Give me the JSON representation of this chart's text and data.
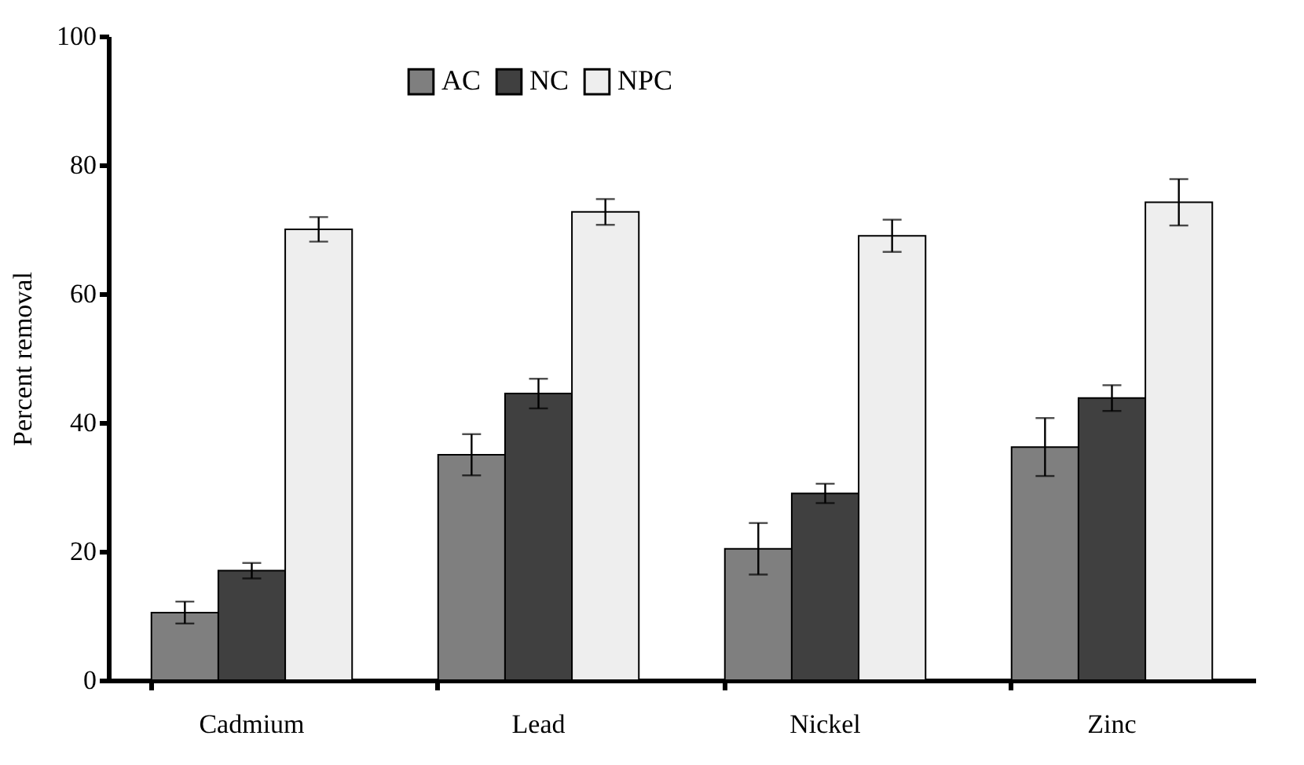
{
  "chart_data": {
    "type": "bar",
    "ylabel": "Percent removal",
    "categories": [
      "Cadmium",
      "Lead",
      "Nickel",
      "Zinc"
    ],
    "series": [
      {
        "name": "AC",
        "color": "#7f7f7f",
        "values": [
          10.5,
          35.0,
          20.4,
          36.2
        ],
        "errors": [
          1.7,
          3.2,
          4.0,
          4.5
        ]
      },
      {
        "name": "NC",
        "color": "#404040",
        "values": [
          17.0,
          44.5,
          29.0,
          43.8
        ],
        "errors": [
          1.2,
          2.3,
          1.5,
          2.0
        ]
      },
      {
        "name": "NPC",
        "color": "#eeeeee",
        "values": [
          70.0,
          72.7,
          69.0,
          74.2
        ],
        "errors": [
          1.9,
          2.0,
          2.5,
          3.6
        ]
      }
    ],
    "ylim": [
      0,
      100
    ],
    "yticks": [
      0,
      20,
      40,
      60,
      80,
      100
    ],
    "grid": false,
    "legend": "top"
  }
}
